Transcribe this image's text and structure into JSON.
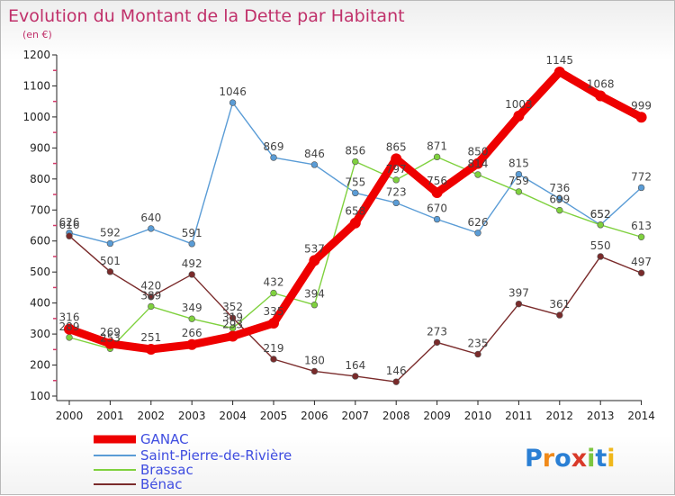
{
  "chart_data": {
    "type": "line",
    "title": "Evolution du Montant de la Dette par Habitant",
    "subtitle": "(en €)",
    "x": [
      "2000",
      "2001",
      "2002",
      "2003",
      "2004",
      "2005",
      "2006",
      "2007",
      "2008",
      "2009",
      "2010",
      "2011",
      "2012",
      "2013",
      "2014"
    ],
    "ylim": [
      100,
      1200
    ],
    "yticks": [
      100,
      200,
      300,
      400,
      500,
      600,
      700,
      800,
      900,
      1000,
      1100,
      1200
    ],
    "grid": false,
    "legend_position": "bottom-left",
    "series": [
      {
        "name": "GANAC",
        "color": "#ee0000",
        "width": 9,
        "marker": 6,
        "values": [
          316,
          269,
          251,
          266,
          293,
          335,
          537,
          658,
          865,
          756,
          850,
          1003,
          1145,
          1068,
          999
        ]
      },
      {
        "name": "Saint-Pierre-de-Rivière",
        "color": "#5a9cd6",
        "width": 1.4,
        "marker": 3.4,
        "values": [
          626,
          592,
          640,
          591,
          1046,
          869,
          846,
          755,
          723,
          670,
          626,
          815,
          736,
          652,
          772
        ]
      },
      {
        "name": "Brassac",
        "color": "#7fd13e",
        "width": 1.4,
        "marker": 3.4,
        "values": [
          289,
          253,
          389,
          349,
          319,
          432,
          394,
          856,
          797,
          871,
          814,
          759,
          699,
          652,
          613
        ]
      },
      {
        "name": "Bénac",
        "color": "#7a2b2b",
        "width": 1.4,
        "marker": 3.4,
        "values": [
          616,
          501,
          420,
          492,
          352,
          219,
          180,
          164,
          146,
          273,
          235,
          397,
          361,
          550,
          497
        ]
      }
    ]
  },
  "branding": {
    "logo_text": "Proxiti",
    "logo_colors": [
      "#2a7fd4",
      "#f08a1a",
      "#2a7fd4",
      "#d93a2a",
      "#7cc63f",
      "#2a7fd4",
      "#f0b71a"
    ]
  }
}
